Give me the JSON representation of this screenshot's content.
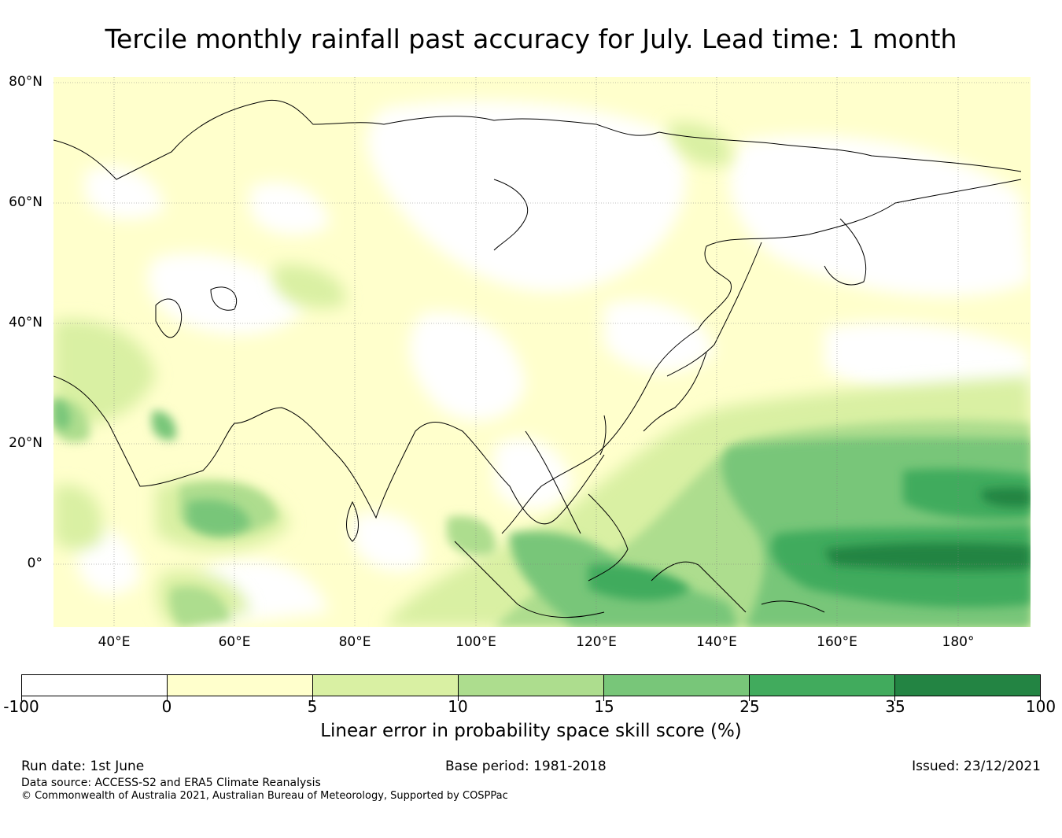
{
  "title": "Tercile monthly rainfall past accuracy for July. Lead time: 1 month",
  "map": {
    "lat_labels": [
      "80°N",
      "60°N",
      "40°N",
      "20°N",
      "0°"
    ],
    "lon_labels": [
      "40°E",
      "60°E",
      "80°E",
      "100°E",
      "120°E",
      "140°E",
      "160°E",
      "180°"
    ]
  },
  "colorbar": {
    "ticks": [
      "-100",
      "0",
      "5",
      "10",
      "15",
      "25",
      "35",
      "100"
    ],
    "colors": [
      "#ffffff",
      "#ffffcc",
      "#d9f0a3",
      "#addd8e",
      "#78c679",
      "#41ab5d",
      "#238443"
    ],
    "label": "Linear error in probability space skill score (%)"
  },
  "footer": {
    "run_date": "Run date: 1st June",
    "base_period": "Base period: 1981-2018",
    "issued": "Issued: 23/12/2021",
    "data_source": "Data source: ACCESS-S2 and ERA5 Climate Reanalysis",
    "copyright": "© Commonwealth of Australia 2021, Australian Bureau of Meteorology, Supported by COSPPac"
  }
}
